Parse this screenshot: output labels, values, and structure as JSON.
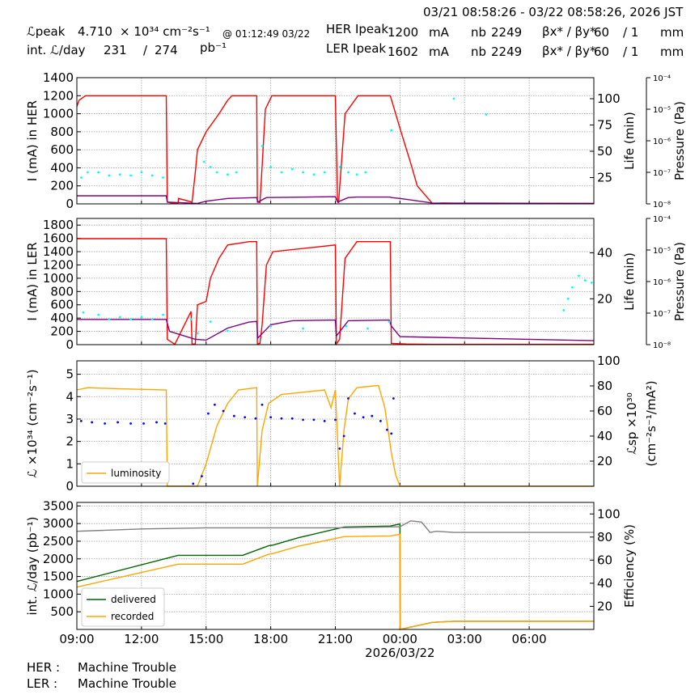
{
  "header": {
    "period": "03/21 08:58:26 - 03/22 08:58:26, 2026 JST",
    "lpeak_label": "ℒpeak",
    "lpeak_value": "4.710",
    "lpeak_unit": "× 10³⁴ cm⁻²s⁻¹",
    "lpeak_time": "@ 01:12:49 03/22",
    "intl_label": "int. ℒ/day",
    "intl_value1": "231",
    "intl_sep": "/",
    "intl_value2": "274",
    "intl_unit": "pb⁻¹",
    "her_label": "HER Ipeak",
    "her_value": "1200",
    "ler_label": "LER Ipeak",
    "ler_value": "1602",
    "current_unit": "mA",
    "nb_label": "nb",
    "her_nb": "2249",
    "ler_nb": "2249",
    "beta_label": "βx* / βy*",
    "beta_x": "60",
    "beta_y": "/ 1",
    "beta_unit": "mm"
  },
  "footer": {
    "her_label": "HER :",
    "her_status": "Machine Trouble",
    "ler_label": "LER :",
    "ler_status": "Machine Trouble"
  },
  "chart_data": [
    {
      "type": "line",
      "panel": "HER",
      "ylabel": "I (mA) in HER",
      "y2label": "Life (min)",
      "y3label": "Pressure (Pa)",
      "ylim": [
        0,
        1400
      ],
      "yticks": [
        0,
        200,
        400,
        600,
        800,
        1000,
        1200,
        1400
      ],
      "y2lim": [
        0,
        120
      ],
      "y2ticks": [
        25,
        50,
        75,
        100
      ],
      "y3ticks": [
        "10⁻⁸",
        "10⁻⁷",
        "10⁻⁶",
        "10⁻⁵",
        "10⁻⁴"
      ],
      "xlim": [
        0,
        24
      ],
      "series": [
        {
          "color": "#ff0000",
          "axis": "left",
          "x": [
            0,
            0.1,
            0.4,
            4.15,
            4.2,
            4.4,
            4.7,
            4.72,
            5.35,
            5.5,
            5.6,
            6.0,
            6.6,
            7.0,
            7.2,
            7.4,
            7.9,
            8.35,
            8.38,
            8.5,
            8.55,
            8.75,
            9.05,
            12.0,
            12.1,
            12.15,
            12.45,
            13.05,
            14.55,
            15.05,
            15.5,
            15.8,
            16.45,
            16.5,
            17.0,
            18.0,
            24.0
          ],
          "y": [
            1080,
            1150,
            1200,
            1200,
            20,
            10,
            5,
            60,
            20,
            350,
            600,
            800,
            1000,
            1150,
            1200,
            1200,
            1200,
            1200,
            20,
            15,
            200,
            1050,
            1200,
            1200,
            20,
            15,
            1000,
            1200,
            1200,
            800,
            450,
            200,
            20,
            5,
            10,
            5,
            5
          ]
        },
        {
          "color": "#800080",
          "axis": "left",
          "x": [
            0,
            4.15,
            4.2,
            5.6,
            6.0,
            7.0,
            8.35,
            8.4,
            8.8,
            12.0,
            12.1,
            12.6,
            13.0,
            14.55,
            14.6,
            15.0,
            16.5,
            24.0
          ],
          "y": [
            90,
            90,
            20,
            5,
            30,
            60,
            70,
            20,
            70,
            80,
            20,
            70,
            75,
            75,
            70,
            60,
            10,
            5
          ]
        },
        {
          "color": "#00ffff",
          "axis": "right",
          "mode": "scatter",
          "x": [
            0.2,
            0.5,
            1.0,
            1.5,
            2.0,
            2.5,
            3.0,
            3.5,
            4.0,
            5.9,
            6.2,
            6.5,
            7.0,
            7.4,
            8.6,
            9.0,
            9.5,
            10.0,
            10.5,
            11.0,
            11.5,
            12.2,
            12.6,
            13.0,
            13.4,
            14.6,
            17.5,
            19.0
          ],
          "y": [
            25,
            30,
            30,
            27,
            28,
            27,
            30,
            27,
            25,
            40,
            35,
            30,
            28,
            30,
            55,
            35,
            30,
            33,
            30,
            28,
            30,
            35,
            30,
            28,
            30,
            70,
            100,
            85
          ]
        }
      ]
    },
    {
      "type": "line",
      "panel": "LER",
      "ylabel": "I (mA) in LER",
      "y2label": "Life (min)",
      "y3label": "Pressure (Pa)",
      "ylim": [
        0,
        1900
      ],
      "yticks": [
        0,
        200,
        400,
        600,
        800,
        1000,
        1200,
        1400,
        1600,
        1800
      ],
      "y2lim": [
        0,
        55
      ],
      "y2ticks": [
        20,
        40
      ],
      "y3ticks": [
        "10⁻⁸",
        "10⁻⁷",
        "10⁻⁶",
        "10⁻⁵",
        "10⁻⁴"
      ],
      "xlim": [
        0,
        24
      ],
      "series": [
        {
          "color": "#ff0000",
          "axis": "left",
          "x": [
            0,
            4.15,
            4.2,
            4.55,
            5.3,
            5.35,
            5.5,
            5.6,
            6.0,
            6.2,
            6.6,
            7.0,
            7.4,
            8.0,
            8.35,
            8.38,
            8.5,
            8.6,
            8.8,
            9.1,
            12.0,
            12.05,
            12.2,
            12.45,
            13.0,
            14.55,
            14.6,
            15.3,
            16.5,
            24.0
          ],
          "y": [
            1595,
            1595,
            80,
            5,
            500,
            10,
            10,
            600,
            650,
            1000,
            1300,
            1500,
            1520,
            1550,
            1550,
            10,
            20,
            300,
            1200,
            1400,
            1500,
            10,
            80,
            1300,
            1550,
            1550,
            20,
            10,
            5,
            5
          ]
        },
        {
          "color": "#800080",
          "axis": "left",
          "x": [
            0,
            4.15,
            4.3,
            5.5,
            6.0,
            7.0,
            8.0,
            8.35,
            8.4,
            9.0,
            10.0,
            12.0,
            12.05,
            12.6,
            14.5,
            14.6,
            15.0,
            24.0
          ],
          "y": [
            380,
            380,
            200,
            80,
            70,
            250,
            340,
            350,
            100,
            300,
            360,
            370,
            130,
            360,
            370,
            280,
            120,
            60
          ]
        },
        {
          "color": "#00ffff",
          "axis": "right",
          "mode": "scatter",
          "x": [
            0.3,
            1.0,
            1.5,
            2.0,
            2.5,
            3.0,
            3.5,
            4.0,
            5.3,
            5.6,
            6.2,
            7.0,
            9.0,
            10.5,
            12.5,
            13.5,
            14.5,
            22.6,
            22.8,
            23.0,
            23.3,
            23.6,
            23.9
          ],
          "y": [
            14,
            13,
            11,
            12,
            11,
            12,
            11,
            13,
            11,
            5,
            10,
            6,
            8,
            7,
            8,
            7,
            10,
            15,
            20,
            25,
            30,
            28,
            27
          ]
        }
      ]
    },
    {
      "type": "line",
      "panel": "Luminosity",
      "ylabel": "ℒ ×10³⁴ (cm⁻²s⁻¹)",
      "y2label": "ℒsp ×10³⁰ (cm⁻²s⁻¹/mA²)",
      "ylim": [
        0,
        5.6
      ],
      "yticks": [
        0,
        1,
        2,
        3,
        4,
        5
      ],
      "y2lim": [
        0,
        100
      ],
      "y2ticks": [
        20,
        40,
        60,
        80,
        100
      ],
      "xlim": [
        0,
        24
      ],
      "legend": [
        "luminosity"
      ],
      "series": [
        {
          "name": "luminosity",
          "color": "#ffa500",
          "axis": "left",
          "x": [
            0,
            0.5,
            2.0,
            4.15,
            4.2,
            5.6,
            6.0,
            6.5,
            7.0,
            7.5,
            8.35,
            8.38,
            8.6,
            8.9,
            9.5,
            10.5,
            11.5,
            11.8,
            12.0,
            12.2,
            12.4,
            12.6,
            13.0,
            14.0,
            14.3,
            14.6,
            14.8,
            15.0,
            24.0
          ],
          "y": [
            4.3,
            4.4,
            4.35,
            4.3,
            0,
            0,
            1.0,
            2.7,
            3.7,
            4.3,
            4.4,
            0,
            2.5,
            3.7,
            4.1,
            4.2,
            4.3,
            3.5,
            4.3,
            0,
            2.5,
            3.9,
            4.4,
            4.5,
            3.5,
            1.5,
            0.5,
            0,
            0
          ]
        },
        {
          "color": "#0000ff",
          "axis": "right",
          "mode": "scatter",
          "x": [
            0.2,
            0.7,
            1.3,
            1.9,
            2.5,
            3.1,
            3.7,
            4.1,
            5.4,
            5.8,
            6.1,
            6.4,
            6.8,
            7.3,
            7.8,
            8.3,
            8.6,
            9.0,
            9.5,
            10.0,
            10.5,
            11.0,
            11.5,
            12.0,
            12.2,
            12.4,
            12.6,
            12.9,
            13.3,
            13.7,
            14.1,
            14.4,
            14.6,
            14.7
          ],
          "y": [
            52,
            51,
            50,
            51,
            50,
            50,
            51,
            50,
            2,
            8,
            58,
            65,
            60,
            56,
            55,
            54,
            65,
            55,
            54,
            54,
            53,
            53,
            52,
            53,
            30,
            40,
            70,
            58,
            55,
            56,
            52,
            45,
            42,
            70
          ]
        }
      ]
    },
    {
      "type": "line",
      "panel": "Integrated",
      "ylabel": "int. ℒ/day (pb⁻¹)",
      "y2label": "Efficiency (%)",
      "ylim": [
        0,
        3600
      ],
      "yticks": [
        500,
        1000,
        1500,
        2000,
        2500,
        3000,
        3500
      ],
      "y2lim": [
        0,
        110
      ],
      "y2ticks": [
        20,
        40,
        60,
        80,
        100
      ],
      "xlim": [
        0,
        24
      ],
      "xticks": [
        "09:00",
        "12:00",
        "15:00",
        "18:00",
        "21:00",
        "00:00",
        "03:00",
        "06:00"
      ],
      "xdate": "2026/03/22",
      "legend": [
        "delivered",
        "recorded"
      ],
      "series": [
        {
          "name": "delivered",
          "color": "#006400",
          "axis": "left",
          "x": [
            0,
            4.7,
            7.7,
            8.9,
            9.1,
            10.3,
            12.4,
            14.55,
            15.0,
            15.01,
            16.5,
            17.5,
            24.0
          ],
          "y": [
            1360,
            2100,
            2100,
            2370,
            2390,
            2600,
            2900,
            2930,
            2990,
            0,
            200,
            231,
            231
          ]
        },
        {
          "name": "recorded",
          "color": "#ffa500",
          "axis": "left",
          "x": [
            0,
            4.7,
            7.7,
            8.9,
            9.1,
            10.3,
            12.4,
            14.55,
            15.0,
            15.01,
            16.5,
            17.5,
            24.0
          ],
          "y": [
            1200,
            1850,
            1850,
            2130,
            2150,
            2360,
            2630,
            2650,
            2700,
            0,
            200,
            231,
            231
          ]
        },
        {
          "color": "#808080",
          "axis": "right",
          "x": [
            0,
            3.0,
            6.0,
            9.0,
            12.0,
            15.0,
            15.5,
            16.0,
            16.4,
            16.7,
            17.5,
            24.0
          ],
          "y": [
            85,
            87,
            88,
            88,
            88,
            89,
            94,
            93,
            84,
            85,
            84,
            84
          ]
        }
      ]
    }
  ]
}
